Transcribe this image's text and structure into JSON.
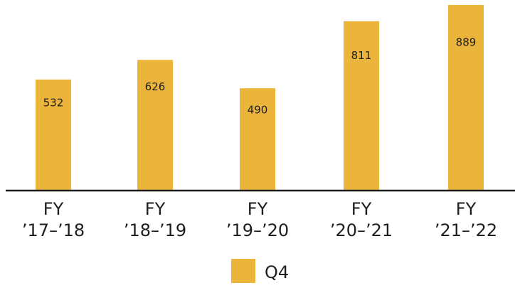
{
  "chart_data": {
    "type": "bar",
    "categories": [
      [
        "FY",
        "’17–’18"
      ],
      [
        "FY",
        "’18–’19"
      ],
      [
        "FY",
        "’19–’20"
      ],
      [
        "FY",
        "’20–’21"
      ],
      [
        "FY",
        "’21–’22"
      ]
    ],
    "series": [
      {
        "name": "Q4",
        "values": [
          532,
          626,
          490,
          811,
          889
        ],
        "color": "#EBB53B"
      }
    ],
    "data_labels": [
      "532",
      "626",
      "490",
      "811",
      "889"
    ],
    "legend": {
      "position": "bottom",
      "label": "Q4"
    },
    "ylim": [
      0,
      889
    ],
    "grid": false,
    "axis_color": "#1e1e1e",
    "text_color": "#1e1e1e"
  }
}
